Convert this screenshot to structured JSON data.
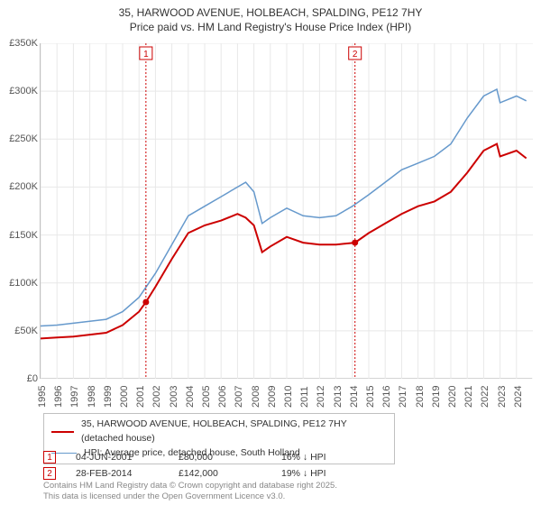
{
  "title_line1": "35, HARWOOD AVENUE, HOLBEACH, SPALDING, PE12 7HY",
  "title_line2": "Price paid vs. HM Land Registry's House Price Index (HPI)",
  "chart": {
    "type": "line",
    "background_color": "#ffffff",
    "grid_color": "#e8e8e8",
    "axis_color": "#c0c0c0",
    "xlim": [
      1995,
      2025
    ],
    "ylim": [
      0,
      350000
    ],
    "ytick_step": 50000,
    "y_ticks": [
      "£0",
      "£50K",
      "£100K",
      "£150K",
      "£200K",
      "£250K",
      "£300K",
      "£350K"
    ],
    "x_ticks": [
      "1995",
      "1996",
      "1997",
      "1998",
      "1999",
      "2000",
      "2001",
      "2002",
      "2003",
      "2004",
      "2005",
      "2006",
      "2007",
      "2008",
      "2009",
      "2010",
      "2011",
      "2012",
      "2013",
      "2014",
      "2015",
      "2016",
      "2017",
      "2018",
      "2019",
      "2020",
      "2021",
      "2022",
      "2023",
      "2024"
    ],
    "series": [
      {
        "name": "35, HARWOOD AVENUE, HOLBEACH, SPALDING, PE12 7HY (detached house)",
        "color": "#cc0000",
        "line_width": 2,
        "data": [
          [
            1995,
            42000
          ],
          [
            1996,
            43000
          ],
          [
            1997,
            44000
          ],
          [
            1998,
            46000
          ],
          [
            1999,
            48000
          ],
          [
            2000,
            56000
          ],
          [
            2001,
            70000
          ],
          [
            2001.42,
            80000
          ],
          [
            2002,
            96000
          ],
          [
            2003,
            125000
          ],
          [
            2004,
            152000
          ],
          [
            2005,
            160000
          ],
          [
            2006,
            165000
          ],
          [
            2007,
            172000
          ],
          [
            2007.5,
            168000
          ],
          [
            2008,
            160000
          ],
          [
            2008.5,
            132000
          ],
          [
            2009,
            138000
          ],
          [
            2010,
            148000
          ],
          [
            2011,
            142000
          ],
          [
            2012,
            140000
          ],
          [
            2013,
            140000
          ],
          [
            2014.16,
            142000
          ],
          [
            2015,
            152000
          ],
          [
            2016,
            162000
          ],
          [
            2017,
            172000
          ],
          [
            2018,
            180000
          ],
          [
            2019,
            185000
          ],
          [
            2020,
            195000
          ],
          [
            2021,
            215000
          ],
          [
            2022,
            238000
          ],
          [
            2022.8,
            245000
          ],
          [
            2023,
            232000
          ],
          [
            2024,
            238000
          ],
          [
            2024.6,
            230000
          ]
        ]
      },
      {
        "name": "HPI: Average price, detached house, South Holland",
        "color": "#6699cc",
        "line_width": 1.5,
        "data": [
          [
            1995,
            55000
          ],
          [
            1996,
            56000
          ],
          [
            1997,
            58000
          ],
          [
            1998,
            60000
          ],
          [
            1999,
            62000
          ],
          [
            2000,
            70000
          ],
          [
            2001,
            85000
          ],
          [
            2002,
            110000
          ],
          [
            2003,
            140000
          ],
          [
            2004,
            170000
          ],
          [
            2005,
            180000
          ],
          [
            2006,
            190000
          ],
          [
            2007,
            200000
          ],
          [
            2007.5,
            205000
          ],
          [
            2008,
            195000
          ],
          [
            2008.5,
            162000
          ],
          [
            2009,
            168000
          ],
          [
            2010,
            178000
          ],
          [
            2011,
            170000
          ],
          [
            2012,
            168000
          ],
          [
            2013,
            170000
          ],
          [
            2014,
            180000
          ],
          [
            2015,
            192000
          ],
          [
            2016,
            205000
          ],
          [
            2017,
            218000
          ],
          [
            2018,
            225000
          ],
          [
            2019,
            232000
          ],
          [
            2020,
            245000
          ],
          [
            2021,
            272000
          ],
          [
            2022,
            295000
          ],
          [
            2022.8,
            302000
          ],
          [
            2023,
            288000
          ],
          [
            2024,
            295000
          ],
          [
            2024.6,
            290000
          ]
        ]
      }
    ],
    "markers": [
      {
        "num": "1",
        "x": 2001.42,
        "y": 80000
      },
      {
        "num": "2",
        "x": 2014.16,
        "y": 142000
      }
    ]
  },
  "legend": {
    "border_color": "#c0c0c0",
    "items": [
      {
        "color": "#cc0000",
        "label": "35, HARWOOD AVENUE, HOLBEACH, SPALDING, PE12 7HY (detached house)"
      },
      {
        "color": "#6699cc",
        "label": "HPI: Average price, detached house, South Holland"
      }
    ]
  },
  "events": [
    {
      "num": "1",
      "date": "04-JUN-2001",
      "price": "£80,000",
      "diff": "16% ↓ HPI"
    },
    {
      "num": "2",
      "date": "28-FEB-2014",
      "price": "£142,000",
      "diff": "19% ↓ HPI"
    }
  ],
  "footer_line1": "Contains HM Land Registry data © Crown copyright and database right 2025.",
  "footer_line2": "This data is licensed under the Open Government Licence v3.0."
}
